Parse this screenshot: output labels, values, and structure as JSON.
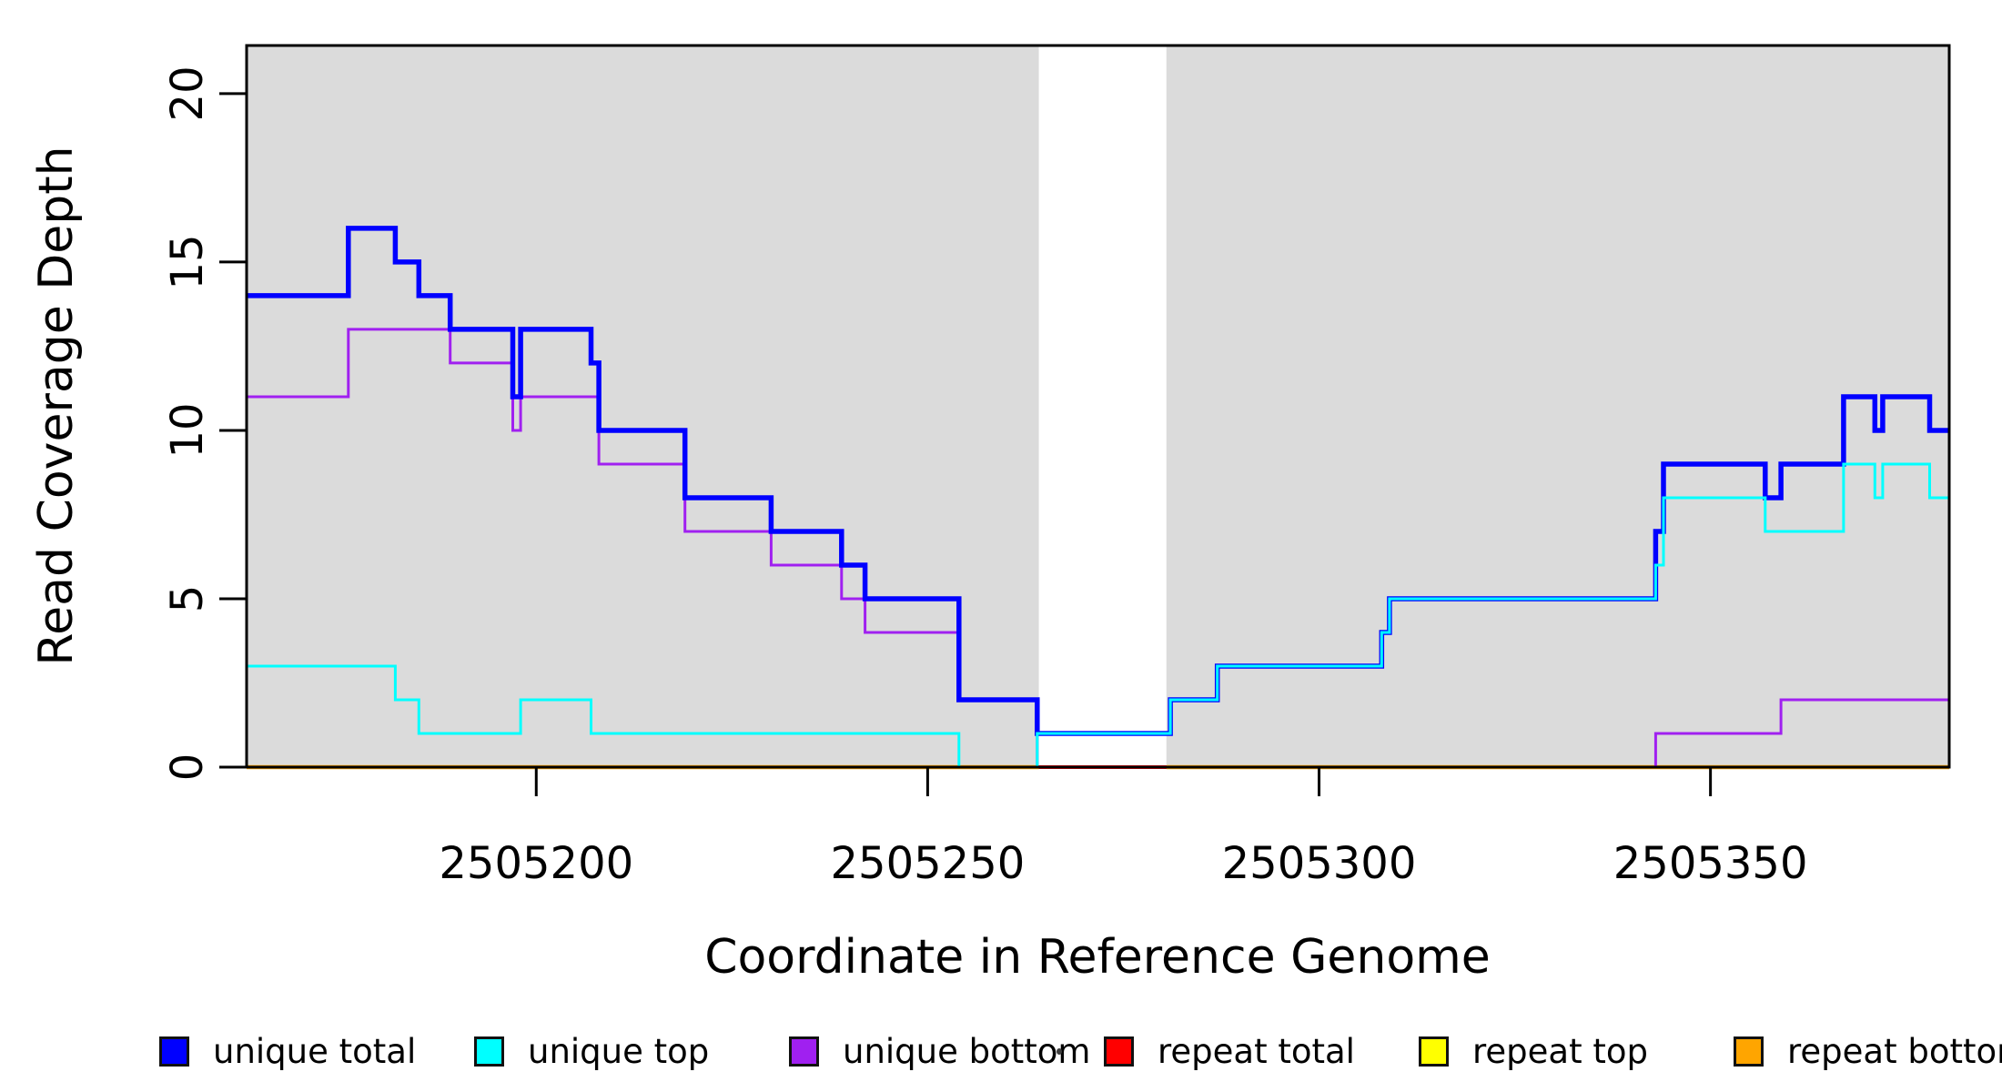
{
  "figure": {
    "xlabel": "Coordinate in Reference Genome",
    "ylabel": "Read Coverage Depth"
  },
  "legend": {
    "items": [
      {
        "label": "unique total",
        "color": "#0000FF"
      },
      {
        "label": "unique top",
        "color": "#00FFFF"
      },
      {
        "label": "unique bottom",
        "color": "#A020F0"
      },
      {
        "label": "repeat total",
        "color": "#FF0000"
      },
      {
        "label": "repeat top",
        "color": "#FFFF00"
      },
      {
        "label": "repeat bottom",
        "color": "#FFA500"
      }
    ]
  },
  "colors": {
    "plot_background": "#DBDBDB",
    "gap_background": "#FFFFFF",
    "axis": "#000000"
  },
  "chart_data": {
    "type": "line",
    "subtype": "step-after-coverage",
    "title": "",
    "xlabel": "Coordinate in Reference Genome",
    "ylabel": "Read Coverage Depth",
    "x_domain": [
      2505163,
      2505380.5
    ],
    "y_domain": [
      0,
      21.43
    ],
    "x_ticks": [
      {
        "value": 2505200,
        "label": "2505200"
      },
      {
        "value": 2505250,
        "label": "2505250"
      },
      {
        "value": 2505300,
        "label": "2505300"
      },
      {
        "value": 2505350,
        "label": "2505350"
      }
    ],
    "y_ticks": [
      {
        "value": 0,
        "label": "0"
      },
      {
        "value": 5,
        "label": "5"
      },
      {
        "value": 10,
        "label": "10"
      },
      {
        "value": 15,
        "label": "15"
      },
      {
        "value": 20,
        "label": "20"
      }
    ],
    "grid": false,
    "legend_position": "bottom",
    "white_gap_x": [
      2505264.2,
      2505280.5
    ],
    "draw_order": [
      "repeat total",
      "repeat top",
      "repeat bottom",
      "unique bottom",
      "unique total",
      "unique top"
    ],
    "series": [
      {
        "name": "unique total",
        "color": "#0000FF",
        "line_width": 5.5,
        "segments": [
          [
            [
              2505163,
              14
            ],
            [
              2505176,
              16
            ],
            [
              2505182,
              15
            ],
            [
              2505185,
              14
            ],
            [
              2505189,
              13
            ],
            [
              2505197,
              11
            ],
            [
              2505198,
              13
            ],
            [
              2505207,
              12
            ],
            [
              2505208,
              10
            ],
            [
              2505219,
              8
            ],
            [
              2505230,
              7
            ],
            [
              2505239,
              6
            ],
            [
              2505242,
              5
            ],
            [
              2505254,
              2
            ],
            [
              2505264,
              1
            ],
            [
              2505281,
              2
            ],
            [
              2505287,
              3
            ],
            [
              2505308,
              4
            ],
            [
              2505309,
              5
            ],
            [
              2505343,
              7
            ],
            [
              2505344,
              9
            ],
            [
              2505357,
              8
            ],
            [
              2505359,
              9
            ],
            [
              2505367,
              11
            ],
            [
              2505371,
              10
            ],
            [
              2505372,
              11
            ],
            [
              2505378,
              10
            ],
            [
              2505380.5,
              10
            ]
          ]
        ]
      },
      {
        "name": "unique top",
        "color": "#00FFFF",
        "line_width": 3,
        "segments": [
          [
            [
              2505163,
              3
            ],
            [
              2505182,
              2
            ],
            [
              2505185,
              1
            ],
            [
              2505198,
              2
            ],
            [
              2505207,
              1
            ],
            [
              2505254,
              0
            ],
            [
              2505264,
              1
            ],
            [
              2505281,
              2
            ],
            [
              2505287,
              3
            ],
            [
              2505308,
              4
            ],
            [
              2505309,
              5
            ],
            [
              2505343,
              6
            ],
            [
              2505344,
              8
            ],
            [
              2505357,
              7
            ],
            [
              2505367,
              9
            ],
            [
              2505371,
              8
            ],
            [
              2505372,
              9
            ],
            [
              2505378,
              8
            ],
            [
              2505380.5,
              8
            ]
          ]
        ]
      },
      {
        "name": "unique bottom",
        "color": "#A020F0",
        "line_width": 3,
        "segments": [
          [
            [
              2505163,
              11
            ],
            [
              2505176,
              13
            ],
            [
              2505189,
              12
            ],
            [
              2505197,
              10
            ],
            [
              2505198,
              11
            ],
            [
              2505208,
              9
            ],
            [
              2505219,
              7
            ],
            [
              2505230,
              6
            ],
            [
              2505239,
              5
            ],
            [
              2505242,
              4
            ],
            [
              2505254,
              2
            ],
            [
              2505264,
              0
            ],
            [
              2505343,
              1
            ],
            [
              2505359,
              2
            ],
            [
              2505380.5,
              2
            ]
          ]
        ]
      },
      {
        "name": "repeat total",
        "color": "#FF0000",
        "line_width": 4,
        "segments": [
          [
            [
              2505163,
              0
            ],
            [
              2505380.5,
              0
            ]
          ]
        ]
      },
      {
        "name": "repeat top",
        "color": "#FFFF00",
        "line_width": 2.5,
        "segments": [
          [
            [
              2505163,
              0
            ],
            [
              2505380.5,
              0
            ]
          ]
        ]
      },
      {
        "name": "repeat bottom",
        "color": "#FFA500",
        "line_width": 4.5,
        "segments": [
          [
            [
              2505163,
              0
            ],
            [
              2505264.2,
              0
            ]
          ],
          [
            [
              2505280.5,
              0
            ],
            [
              2505380.5,
              0
            ]
          ]
        ]
      }
    ]
  }
}
